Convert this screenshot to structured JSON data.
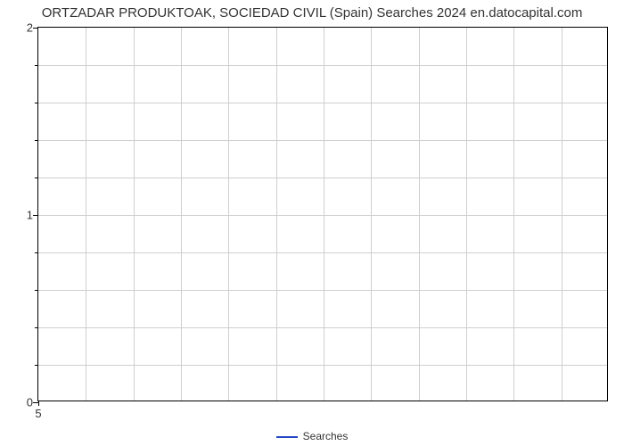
{
  "chart": {
    "type": "line",
    "title": "ORTZADAR PRODUKTOAK, SOCIEDAD CIVIL (Spain) Searches 2024 en.datocapital.com",
    "title_fontsize": 15,
    "title_color": "#333333",
    "background_color": "#ffffff",
    "plot_border_color": "#000000",
    "grid_color": "#cfcfcf",
    "ylim": [
      0,
      2
    ],
    "y_major_ticks": [
      0,
      1,
      2
    ],
    "y_minor_per_major": 5,
    "xlim": [
      5,
      17
    ],
    "x_visible_tick": 5,
    "x_grid_count": 12,
    "legend": {
      "label": "Searches",
      "color": "#2546c2"
    },
    "series": {
      "name": "Searches",
      "color": "#2546c2",
      "values": []
    }
  }
}
